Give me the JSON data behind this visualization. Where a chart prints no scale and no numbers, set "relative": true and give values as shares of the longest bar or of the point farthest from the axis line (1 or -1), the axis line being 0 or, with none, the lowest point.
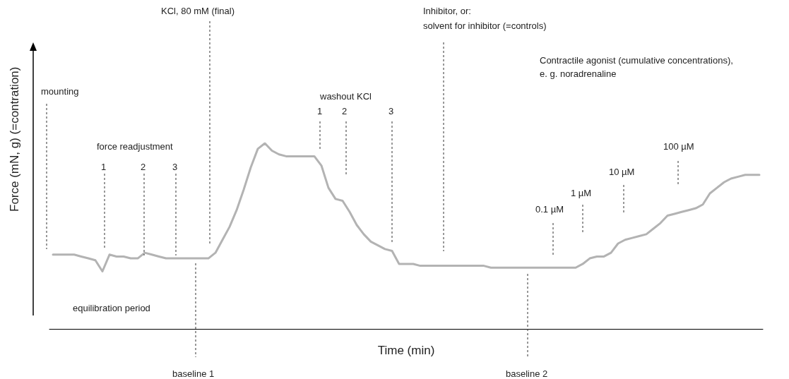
{
  "chart_data": {
    "type": "line",
    "relative": true,
    "xlabel": "Time (min)",
    "ylabel": "Force (mN, g) (=contration)",
    "color": "#b3b3b3",
    "grid": false,
    "marker": "none",
    "line_style": "solid",
    "categories": [
      null,
      null,
      null,
      null,
      null,
      null,
      null,
      null,
      null,
      null,
      null,
      null,
      null,
      null,
      null,
      null,
      null,
      null,
      null,
      null,
      null,
      null,
      null,
      null,
      null,
      null,
      null,
      null,
      null,
      null,
      null,
      null,
      null,
      null,
      null,
      null,
      null,
      null,
      null,
      null,
      null,
      null,
      null,
      null,
      null,
      null,
      null,
      null,
      null,
      null,
      null,
      null,
      null,
      null,
      null,
      null,
      null,
      null,
      null,
      null,
      null,
      null,
      null,
      null,
      null,
      null,
      null,
      null,
      null,
      null,
      null,
      null,
      null,
      null,
      null,
      null,
      null,
      null,
      null,
      null,
      null,
      null,
      null,
      null,
      null,
      null,
      null,
      null,
      null,
      null,
      null,
      null,
      null,
      null,
      null,
      null,
      null,
      null,
      null,
      null,
      null
    ],
    "values": [
      0.4,
      0.4,
      0.4,
      0.4,
      0.39,
      0.38,
      0.37,
      0.31,
      0.4,
      0.39,
      0.39,
      0.38,
      0.38,
      0.41,
      0.4,
      0.39,
      0.38,
      0.38,
      0.38,
      0.38,
      0.38,
      0.38,
      0.38,
      0.41,
      0.48,
      0.55,
      0.64,
      0.75,
      0.87,
      0.97,
      1.0,
      0.96,
      0.94,
      0.93,
      0.93,
      0.93,
      0.93,
      0.93,
      0.88,
      0.76,
      0.7,
      0.69,
      0.63,
      0.56,
      0.51,
      0.47,
      0.45,
      0.43,
      0.42,
      0.35,
      0.35,
      0.35,
      0.34,
      0.34,
      0.34,
      0.34,
      0.34,
      0.34,
      0.34,
      0.34,
      0.34,
      0.34,
      0.33,
      0.33,
      0.33,
      0.33,
      0.33,
      0.33,
      0.33,
      0.33,
      0.33,
      0.33,
      0.33,
      0.33,
      0.33,
      0.35,
      0.38,
      0.39,
      0.39,
      0.41,
      0.46,
      0.48,
      0.49,
      0.5,
      0.51,
      0.54,
      0.57,
      0.61,
      0.62,
      0.63,
      0.64,
      0.65,
      0.67,
      0.73,
      0.76,
      0.79,
      0.81,
      0.82,
      0.83,
      0.83,
      0.83
    ],
    "annotations": [
      "mounting",
      "force readjustment",
      "1",
      "2",
      "3",
      "equilibration period",
      "KCl, 80 mM (final)",
      "baseline 1",
      "washout KCl",
      "1",
      "2",
      "3",
      "Inhibitor, or:",
      "solvent for inhibitor (=controls)",
      "baseline 2",
      "Contractile agonist (cumulative concentrations),",
      "e. g. noradrenaline",
      "100 µM",
      "10 µM",
      "1 µM",
      "0.1 µM"
    ]
  }
}
